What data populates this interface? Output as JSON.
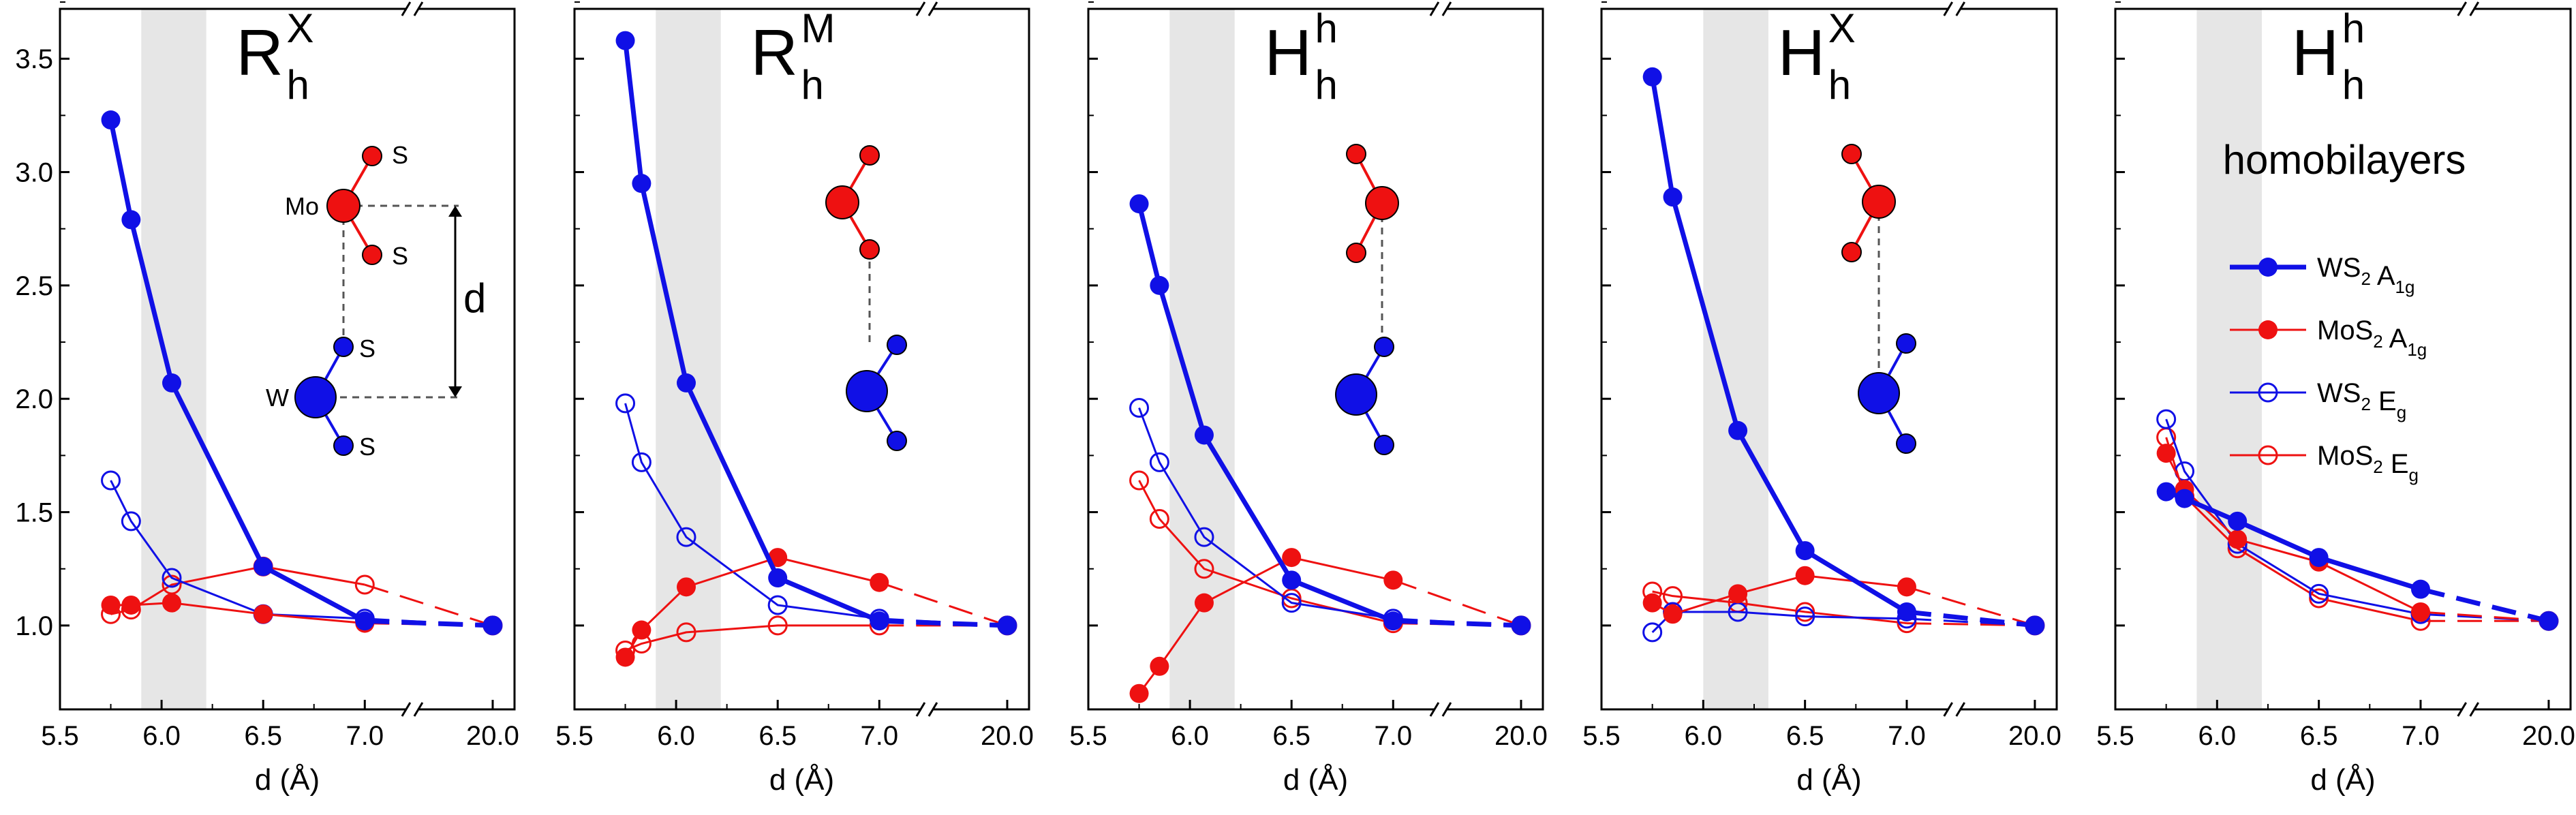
{
  "figure": {
    "y_ticks": [
      "1.0",
      "1.5",
      "2.0",
      "2.5",
      "3.0",
      "3.5"
    ],
    "x_ticks": [
      "5.5",
      "6.0",
      "6.5",
      "7.0",
      "20.0"
    ],
    "xlabel": "d (Å)",
    "colors": {
      "blue": "#1010e6",
      "red": "#ee1111",
      "band": "#e6e6e6"
    },
    "atoms": {
      "mo": "Mo",
      "w": "W",
      "s": "S",
      "d": "d"
    },
    "legend": [
      {
        "main": "WS",
        "sub": "2",
        "tail": " A",
        "tail_sub": "1g",
        "style": "filled-thick",
        "color": "blue"
      },
      {
        "main": "MoS",
        "sub": "2",
        "tail": " A",
        "tail_sub": "1g",
        "style": "filled-thin",
        "color": "red"
      },
      {
        "main": "WS",
        "sub": "2",
        "tail": " E",
        "tail_sub": "g",
        "style": "open-thin",
        "color": "blue"
      },
      {
        "main": "MoS",
        "sub": "2",
        "tail": " E",
        "tail_sub": "g",
        "style": "open-thin",
        "color": "red"
      }
    ],
    "extra_label": "homobilayers"
  },
  "chart_data": [
    {
      "type": "line",
      "title": "R_h^X",
      "title_main": "R",
      "title_sub": "h",
      "title_sup": "X",
      "xlabel": "d (Å)",
      "ylim": [
        0.63,
        3.72
      ],
      "broken_x_axis": true,
      "shaded_band_x": [
        5.9,
        6.22
      ],
      "series": [
        {
          "name": "WS2 A1g",
          "x": [
            5.75,
            5.85,
            6.05,
            6.5,
            7.0,
            20.0
          ],
          "y": [
            3.23,
            2.79,
            2.07,
            1.26,
            1.02,
            1.0
          ]
        },
        {
          "name": "MoS2 A1g",
          "x": [
            5.75,
            5.85,
            6.05,
            6.5,
            7.0,
            20.0
          ],
          "y": [
            1.09,
            1.09,
            1.1,
            1.05,
            1.01,
            1.0
          ]
        },
        {
          "name": "WS2 Eg",
          "x": [
            5.75,
            5.85,
            6.05,
            6.5,
            7.0,
            20.0
          ],
          "y": [
            1.64,
            1.46,
            1.21,
            1.05,
            1.03,
            1.0
          ]
        },
        {
          "name": "MoS2 Eg",
          "x": [
            5.75,
            5.85,
            6.05,
            6.5,
            7.0,
            20.0
          ],
          "y": [
            1.05,
            1.07,
            1.18,
            1.26,
            1.18,
            1.0
          ]
        }
      ]
    },
    {
      "type": "line",
      "title": "R_h^M",
      "title_main": "R",
      "title_sub": "h",
      "title_sup": "M",
      "xlabel": "d (Å)",
      "ylim": [
        0.63,
        3.72
      ],
      "broken_x_axis": true,
      "shaded_band_x": [
        5.9,
        6.22
      ],
      "series": [
        {
          "name": "WS2 A1g",
          "x": [
            5.75,
            5.83,
            6.05,
            6.5,
            7.0,
            20.0
          ],
          "y": [
            3.58,
            2.95,
            2.07,
            1.21,
            1.02,
            1.0
          ]
        },
        {
          "name": "MoS2 A1g",
          "x": [
            5.75,
            5.83,
            6.05,
            6.5,
            7.0,
            20.0
          ],
          "y": [
            0.86,
            0.98,
            1.17,
            1.3,
            1.19,
            1.0
          ]
        },
        {
          "name": "WS2 Eg",
          "x": [
            5.75,
            5.83,
            6.05,
            6.5,
            7.0,
            20.0
          ],
          "y": [
            1.98,
            1.72,
            1.39,
            1.09,
            1.03,
            1.0
          ]
        },
        {
          "name": "MoS2 Eg",
          "x": [
            5.75,
            5.83,
            6.05,
            6.5,
            7.0,
            20.0
          ],
          "y": [
            0.89,
            0.92,
            0.97,
            1.0,
            1.0,
            1.0
          ]
        }
      ]
    },
    {
      "type": "line",
      "title": "H_h^h",
      "title_main": "H",
      "title_sub": "h",
      "title_sup": "h",
      "xlabel": "d (Å)",
      "ylim": [
        0.63,
        3.72
      ],
      "broken_x_axis": true,
      "shaded_band_x": [
        5.9,
        6.22
      ],
      "series": [
        {
          "name": "WS2 A1g",
          "x": [
            5.75,
            5.85,
            6.07,
            6.5,
            7.0,
            20.0
          ],
          "y": [
            2.86,
            2.5,
            1.84,
            1.2,
            1.02,
            1.0
          ]
        },
        {
          "name": "MoS2 A1g",
          "x": [
            5.75,
            5.85,
            6.07,
            6.5,
            7.0,
            20.0
          ],
          "y": [
            0.7,
            0.82,
            1.1,
            1.3,
            1.2,
            1.0
          ]
        },
        {
          "name": "WS2 Eg",
          "x": [
            5.75,
            5.85,
            6.07,
            6.5,
            7.0,
            20.0
          ],
          "y": [
            1.96,
            1.72,
            1.39,
            1.1,
            1.03,
            1.0
          ]
        },
        {
          "name": "MoS2 Eg",
          "x": [
            5.75,
            5.85,
            6.07,
            6.5,
            7.0,
            20.0
          ],
          "y": [
            1.64,
            1.47,
            1.25,
            1.12,
            1.01,
            1.0
          ]
        }
      ]
    },
    {
      "type": "line",
      "title": "H_h^X",
      "title_main": "H",
      "title_sub": "h",
      "title_sup": "X",
      "xlabel": "d (Å)",
      "ylim": [
        0.63,
        3.72
      ],
      "broken_x_axis": true,
      "shaded_band_x": [
        6.0,
        6.32
      ],
      "series": [
        {
          "name": "WS2 A1g",
          "x": [
            5.75,
            5.85,
            6.17,
            6.5,
            7.0,
            20.0
          ],
          "y": [
            3.42,
            2.89,
            1.86,
            1.33,
            1.06,
            1.0
          ]
        },
        {
          "name": "MoS2 A1g",
          "x": [
            5.75,
            5.85,
            6.17,
            6.5,
            7.0,
            20.0
          ],
          "y": [
            1.1,
            1.05,
            1.14,
            1.22,
            1.17,
            1.0
          ]
        },
        {
          "name": "WS2 Eg",
          "x": [
            5.75,
            5.85,
            6.17,
            6.5,
            7.0,
            20.0
          ],
          "y": [
            0.97,
            1.06,
            1.06,
            1.04,
            1.03,
            1.0
          ]
        },
        {
          "name": "MoS2 Eg",
          "x": [
            5.75,
            5.85,
            6.17,
            6.5,
            7.0,
            20.0
          ],
          "y": [
            1.15,
            1.13,
            1.1,
            1.06,
            1.01,
            1.0
          ]
        }
      ]
    },
    {
      "type": "line",
      "title": "H_h^h homobilayers",
      "title_main": "H",
      "title_sub": "h",
      "title_sup": "h",
      "xlabel": "d (Å)",
      "ylim": [
        0.63,
        3.72
      ],
      "broken_x_axis": true,
      "shaded_band_x": [
        5.9,
        6.22
      ],
      "series": [
        {
          "name": "WS2 A1g",
          "x": [
            5.75,
            5.84,
            6.1,
            6.5,
            7.0,
            20.0
          ],
          "y": [
            1.59,
            1.56,
            1.46,
            1.3,
            1.16,
            1.02
          ]
        },
        {
          "name": "MoS2 A1g",
          "x": [
            5.75,
            5.84,
            6.1,
            6.5,
            7.0,
            20.0
          ],
          "y": [
            1.76,
            1.6,
            1.38,
            1.28,
            1.06,
            1.02
          ]
        },
        {
          "name": "WS2 Eg",
          "x": [
            5.75,
            5.84,
            6.1,
            6.5,
            7.0,
            20.0
          ],
          "y": [
            1.91,
            1.68,
            1.36,
            1.14,
            1.05,
            1.02
          ]
        },
        {
          "name": "MoS2 Eg",
          "x": [
            5.75,
            5.84,
            6.1,
            6.5,
            7.0,
            20.0
          ],
          "y": [
            1.83,
            1.57,
            1.34,
            1.12,
            1.02,
            1.02
          ]
        }
      ]
    }
  ]
}
